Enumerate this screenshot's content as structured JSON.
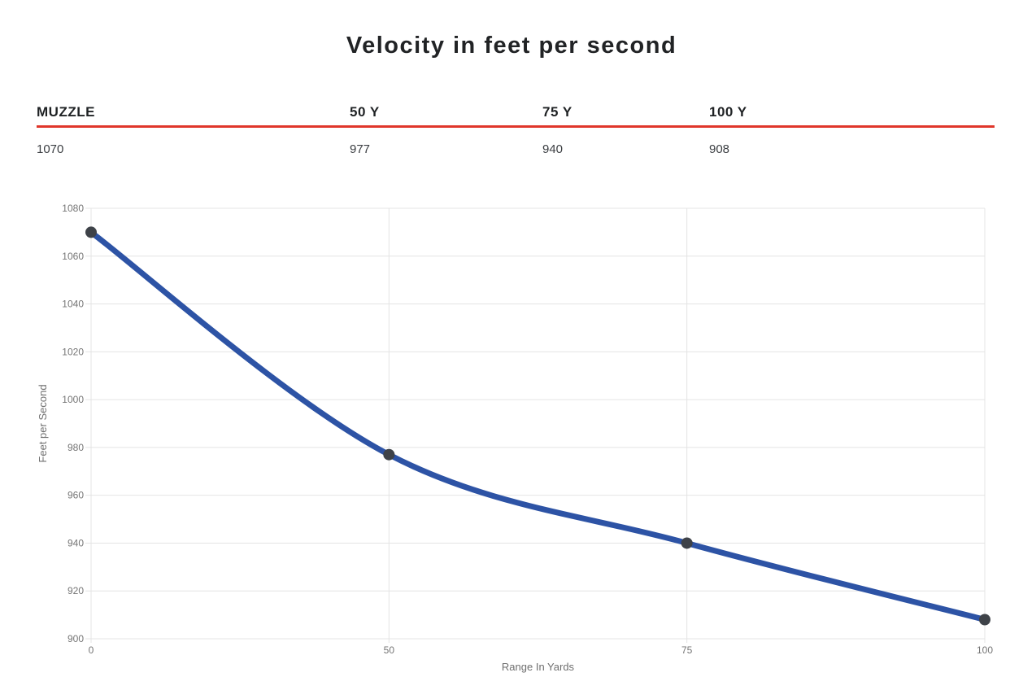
{
  "page": {
    "title": "Velocity in feet per second"
  },
  "table": {
    "headers": [
      "MUZZLE",
      "50 Y",
      "75 Y",
      "100 Y"
    ],
    "values": [
      "1070",
      "977",
      "940",
      "908"
    ],
    "divider_color": "#e0362a"
  },
  "chart_data": {
    "type": "line",
    "categories": [
      "0",
      "50",
      "75",
      "100"
    ],
    "series": [
      {
        "name": "Velocity",
        "values": [
          1070,
          977,
          940,
          908
        ]
      }
    ],
    "title": "Velocity in feet per second",
    "xlabel": "Range In Yards",
    "ylabel": "Feet per Second",
    "ylim": [
      900,
      1080
    ],
    "yticks": [
      900,
      920,
      940,
      960,
      980,
      1000,
      1020,
      1040,
      1060,
      1080
    ],
    "grid": true,
    "legend": "none",
    "smooth": true,
    "line_color": "#2d53a5",
    "line_width": 7,
    "marker_color": "#3e4248",
    "marker_radius": 7,
    "gridline_color": "#e4e4e4",
    "tick_label_color": "#757575",
    "axis_title_color": "#6f6f6f"
  }
}
